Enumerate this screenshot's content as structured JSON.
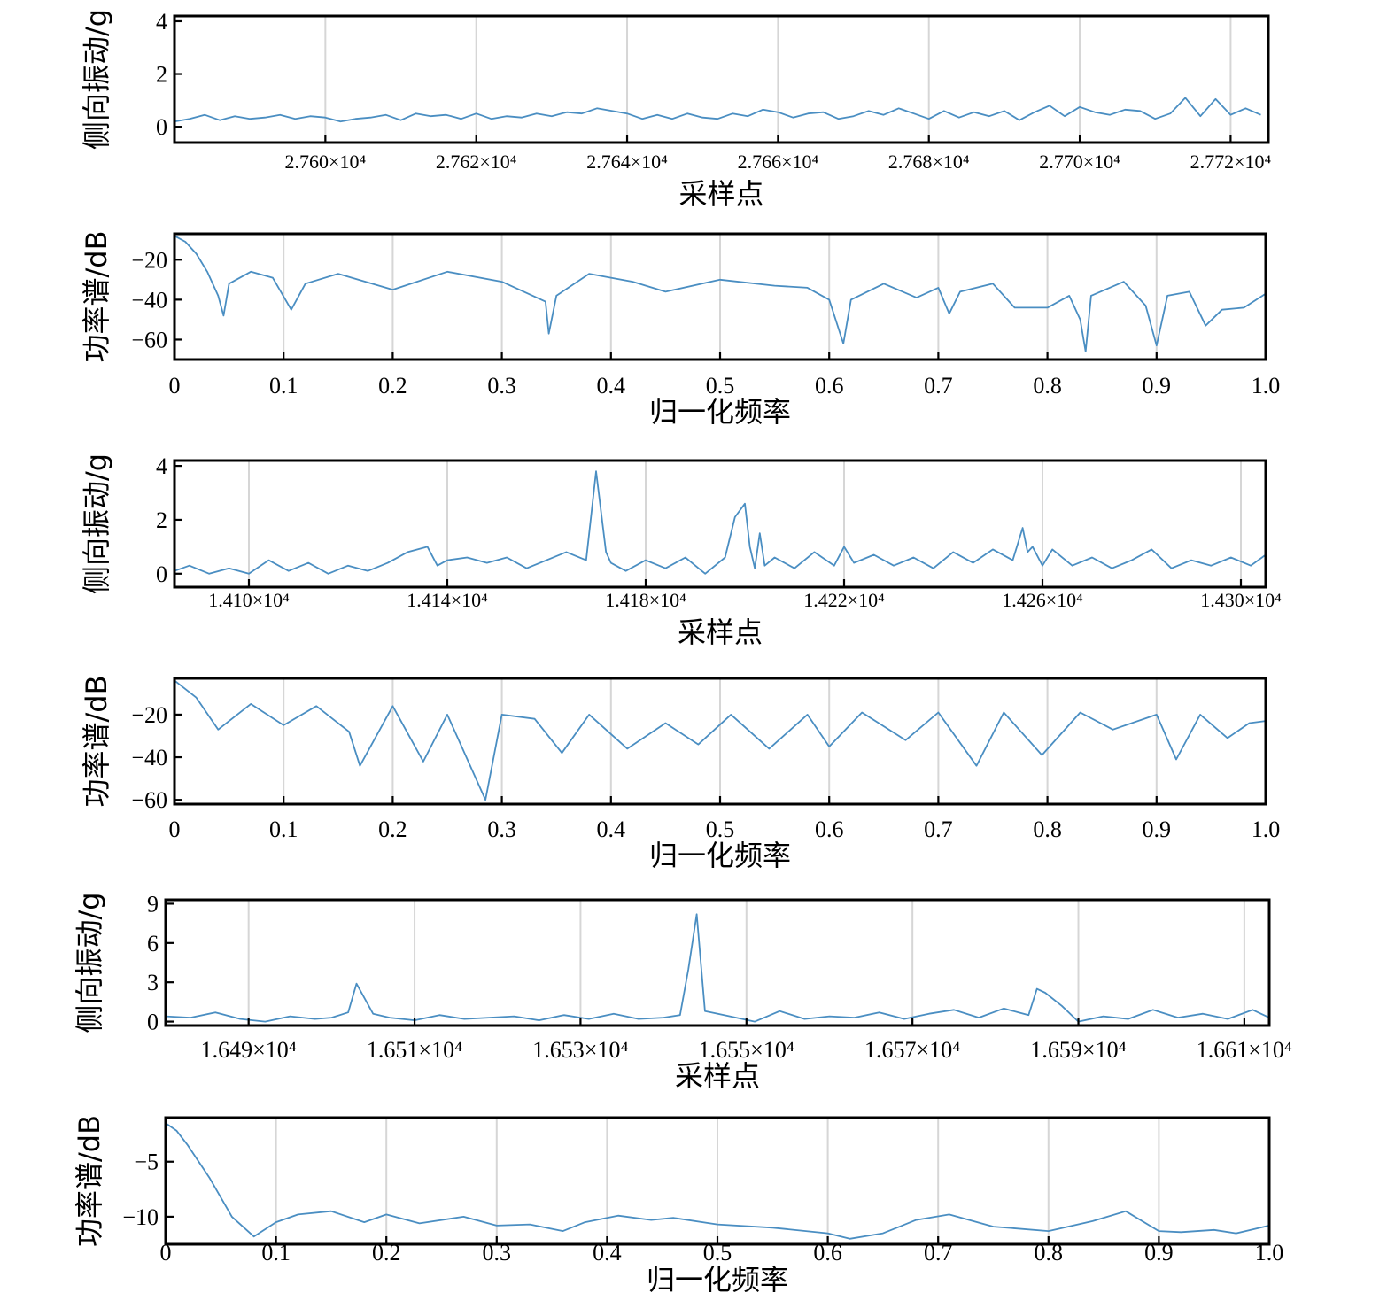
{
  "chart_data": [
    {
      "type": "line",
      "xlabel": "采样点",
      "ylabel": "侧向振动/g",
      "xlim": [
        27580,
        27725
      ],
      "ylim": [
        -0.6,
        4.2
      ],
      "yticks": [
        0,
        2,
        4
      ],
      "xticks": [
        27600,
        27620,
        27640,
        27660,
        27680,
        27700,
        27720
      ],
      "xtick_labels": [
        "2.760×10⁴",
        "2.762×10⁴",
        "2.764×10⁴",
        "2.766×10⁴",
        "2.768×10⁴",
        "2.770×10⁴",
        "2.772×10⁴"
      ],
      "grid": true,
      "series": [
        {
          "x": [
            27580,
            27582,
            27584,
            27586,
            27588,
            27590,
            27592,
            27594,
            27596,
            27598,
            27600,
            27602,
            27604,
            27606,
            27608,
            27610,
            27612,
            27614,
            27616,
            27618,
            27620,
            27622,
            27624,
            27626,
            27628,
            27630,
            27632,
            27634,
            27636,
            27638,
            27640,
            27642,
            27644,
            27646,
            27648,
            27650,
            27652,
            27654,
            27656,
            27658,
            27660,
            27662,
            27664,
            27666,
            27668,
            27670,
            27672,
            27674,
            27676,
            27678,
            27680,
            27682,
            27684,
            27686,
            27688,
            27690,
            27692,
            27694,
            27696,
            27698,
            27700,
            27702,
            27704,
            27706,
            27708,
            27710,
            27712,
            27714,
            27716,
            27718,
            27720,
            27722,
            27724
          ],
          "y": [
            0.2,
            0.3,
            0.45,
            0.25,
            0.4,
            0.3,
            0.35,
            0.45,
            0.3,
            0.4,
            0.35,
            0.2,
            0.3,
            0.35,
            0.45,
            0.25,
            0.5,
            0.4,
            0.45,
            0.3,
            0.5,
            0.3,
            0.4,
            0.35,
            0.5,
            0.4,
            0.55,
            0.5,
            0.7,
            0.6,
            0.5,
            0.3,
            0.45,
            0.3,
            0.5,
            0.35,
            0.3,
            0.5,
            0.4,
            0.65,
            0.55,
            0.35,
            0.5,
            0.55,
            0.3,
            0.4,
            0.6,
            0.45,
            0.7,
            0.5,
            0.3,
            0.6,
            0.35,
            0.55,
            0.4,
            0.6,
            0.25,
            0.55,
            0.8,
            0.4,
            0.75,
            0.55,
            0.45,
            0.65,
            0.6,
            0.3,
            0.5,
            1.1,
            0.4,
            1.05,
            0.45,
            0.7,
            0.45
          ]
        }
      ]
    },
    {
      "type": "line",
      "xlabel": "归一化频率",
      "ylabel": "功率谱/dB",
      "xlim": [
        0,
        1
      ],
      "ylim": [
        -70,
        -7
      ],
      "yticks": [
        -20,
        -40,
        -60
      ],
      "ytick_labels": [
        "−20",
        "−40",
        "−60"
      ],
      "xticks": [
        0,
        0.1,
        0.2,
        0.3,
        0.4,
        0.5,
        0.6,
        0.7,
        0.8,
        0.9,
        1.0
      ],
      "xtick_labels": [
        "0",
        "0.1",
        "0.2",
        "0.3",
        "0.4",
        "0.5",
        "0.6",
        "0.7",
        "0.8",
        "0.9",
        "1.0"
      ],
      "grid": true,
      "series": [
        {
          "x": [
            0,
            0.01,
            0.02,
            0.03,
            0.04,
            0.045,
            0.05,
            0.07,
            0.09,
            0.107,
            0.12,
            0.15,
            0.2,
            0.25,
            0.3,
            0.34,
            0.343,
            0.35,
            0.38,
            0.42,
            0.45,
            0.5,
            0.55,
            0.58,
            0.6,
            0.613,
            0.62,
            0.65,
            0.68,
            0.7,
            0.71,
            0.72,
            0.75,
            0.77,
            0.8,
            0.82,
            0.83,
            0.835,
            0.84,
            0.87,
            0.89,
            0.9,
            0.91,
            0.93,
            0.945,
            0.96,
            0.98,
            1.0
          ],
          "y": [
            -8,
            -11,
            -17,
            -26,
            -38,
            -48,
            -32,
            -26,
            -29,
            -45,
            -32,
            -27,
            -35,
            -26,
            -31,
            -41,
            -57,
            -38,
            -27,
            -31,
            -36,
            -30,
            -33,
            -34,
            -40,
            -62,
            -40,
            -32,
            -39,
            -34,
            -47,
            -36,
            -32,
            -44,
            -44,
            -38,
            -50,
            -66,
            -38,
            -31,
            -43,
            -63,
            -38,
            -36,
            -53,
            -45,
            -44,
            -37
          ]
        }
      ]
    },
    {
      "type": "line",
      "xlabel": "采样点",
      "ylabel": "侧向振动/g",
      "xlim": [
        14085,
        14305
      ],
      "ylim": [
        -0.5,
        4.2
      ],
      "yticks": [
        0,
        2,
        4
      ],
      "xticks": [
        14100,
        14140,
        14180,
        14220,
        14260,
        14300
      ],
      "xtick_labels": [
        "1.410×10⁴",
        "1.414×10⁴",
        "1.418×10⁴",
        "1.422×10⁴",
        "1.426×10⁴",
        "1.430×10⁴"
      ],
      "grid": true,
      "series": [
        {
          "x": [
            14085,
            14088,
            14092,
            14096,
            14100,
            14104,
            14108,
            14112,
            14116,
            14120,
            14124,
            14128,
            14132,
            14134,
            14136,
            14138,
            14140,
            14144,
            14148,
            14152,
            14156,
            14160,
            14164,
            14168,
            14170,
            14172,
            14173,
            14174,
            14176,
            14180,
            14184,
            14188,
            14192,
            14196,
            14198,
            14200,
            14201,
            14202,
            14203,
            14204,
            14206,
            14210,
            14214,
            14218,
            14220,
            14222,
            14226,
            14230,
            14234,
            14238,
            14242,
            14246,
            14250,
            14254,
            14256,
            14257,
            14258,
            14260,
            14262,
            14266,
            14270,
            14274,
            14278,
            14282,
            14286,
            14290,
            14294,
            14298,
            14302,
            14305
          ],
          "y": [
            0.1,
            0.3,
            0.0,
            0.2,
            0.0,
            0.5,
            0.1,
            0.4,
            0.0,
            0.3,
            0.1,
            0.4,
            0.8,
            0.9,
            1.0,
            0.3,
            0.5,
            0.6,
            0.4,
            0.6,
            0.2,
            0.5,
            0.8,
            0.5,
            3.8,
            0.8,
            0.4,
            0.3,
            0.1,
            0.5,
            0.2,
            0.6,
            0.0,
            0.6,
            2.1,
            2.6,
            1.0,
            0.2,
            1.5,
            0.3,
            0.6,
            0.2,
            0.8,
            0.3,
            1.0,
            0.4,
            0.7,
            0.3,
            0.6,
            0.2,
            0.8,
            0.4,
            0.9,
            0.5,
            1.7,
            0.8,
            1.0,
            0.3,
            0.9,
            0.3,
            0.6,
            0.2,
            0.5,
            0.9,
            0.2,
            0.5,
            0.3,
            0.6,
            0.3,
            0.7
          ]
        }
      ]
    },
    {
      "type": "line",
      "xlabel": "归一化频率",
      "ylabel": "功率谱/dB",
      "xlim": [
        0,
        1
      ],
      "ylim": [
        -62,
        -3
      ],
      "yticks": [
        -20,
        -40,
        -60
      ],
      "ytick_labels": [
        "−20",
        "−40",
        "−60"
      ],
      "xticks": [
        0,
        0.1,
        0.2,
        0.3,
        0.4,
        0.5,
        0.6,
        0.7,
        0.8,
        0.9,
        1.0
      ],
      "xtick_labels": [
        "0",
        "0.1",
        "0.2",
        "0.3",
        "0.4",
        "0.5",
        "0.6",
        "0.7",
        "0.8",
        "0.9",
        "1.0"
      ],
      "grid": true,
      "series": [
        {
          "x": [
            0,
            0.02,
            0.04,
            0.07,
            0.1,
            0.13,
            0.16,
            0.17,
            0.2,
            0.228,
            0.25,
            0.285,
            0.3,
            0.33,
            0.355,
            0.38,
            0.415,
            0.45,
            0.48,
            0.51,
            0.545,
            0.58,
            0.6,
            0.63,
            0.67,
            0.7,
            0.735,
            0.76,
            0.795,
            0.83,
            0.86,
            0.9,
            0.918,
            0.94,
            0.965,
            0.985,
            1.0
          ],
          "y": [
            -4,
            -12,
            -27,
            -15,
            -25,
            -16,
            -28,
            -44,
            -16,
            -42,
            -20,
            -60,
            -20,
            -22,
            -38,
            -20,
            -36,
            -24,
            -34,
            -20,
            -36,
            -20,
            -35,
            -19,
            -32,
            -19,
            -44,
            -19,
            -39,
            -19,
            -27,
            -20,
            -41,
            -20,
            -31,
            -24,
            -23
          ]
        }
      ]
    },
    {
      "type": "line",
      "xlabel": "采样点",
      "ylabel": "侧向振动/g",
      "xlim": [
        16480,
        16613
      ],
      "ylim": [
        -0.3,
        9.3
      ],
      "yticks": [
        0,
        3,
        6,
        9
      ],
      "xticks": [
        16490,
        16510,
        16530,
        16550,
        16570,
        16590,
        16610
      ],
      "xtick_labels": [
        "1.649×10⁴",
        "1.651×10⁴",
        "1.653×10⁴",
        "1.655×10⁴",
        "1.657×10⁴",
        "1.659×10⁴",
        "1.661×10⁴"
      ],
      "grid": true,
      "series": [
        {
          "x": [
            16480,
            16483,
            16486,
            16489,
            16492,
            16495,
            16498,
            16500,
            16502,
            16503,
            16505,
            16507,
            16510,
            16513,
            16516,
            16519,
            16522,
            16525,
            16528,
            16531,
            16534,
            16537,
            16540,
            16542,
            16543,
            16544,
            16545,
            16548,
            16551,
            16554,
            16557,
            16560,
            16563,
            16566,
            16569,
            16572,
            16575,
            16578,
            16581,
            16584,
            16585,
            16586,
            16588,
            16590,
            16593,
            16596,
            16599,
            16602,
            16605,
            16608,
            16611,
            16613
          ],
          "y": [
            0.4,
            0.3,
            0.7,
            0.2,
            0.0,
            0.4,
            0.2,
            0.3,
            0.7,
            2.9,
            0.6,
            0.3,
            0.1,
            0.5,
            0.2,
            0.3,
            0.4,
            0.1,
            0.5,
            0.2,
            0.6,
            0.2,
            0.3,
            0.5,
            4.0,
            8.2,
            0.8,
            0.4,
            0.0,
            0.8,
            0.2,
            0.4,
            0.3,
            0.7,
            0.2,
            0.6,
            0.9,
            0.3,
            1.0,
            0.5,
            2.5,
            2.2,
            1.2,
            0.0,
            0.4,
            0.2,
            0.9,
            0.3,
            0.6,
            0.2,
            0.9,
            0.3
          ]
        }
      ]
    },
    {
      "type": "line",
      "xlabel": "归一化频率",
      "ylabel": "功率谱/dB",
      "xlim": [
        0,
        1
      ],
      "ylim": [
        -12.5,
        -1
      ],
      "yticks": [
        -5,
        -10
      ],
      "ytick_labels": [
        "−5",
        "−10"
      ],
      "xticks": [
        0,
        0.1,
        0.2,
        0.3,
        0.4,
        0.5,
        0.6,
        0.7,
        0.8,
        0.9,
        1.0
      ],
      "xtick_labels": [
        "0",
        "0.1",
        "0.2",
        "0.3",
        "0.4",
        "0.5",
        "0.6",
        "0.7",
        "0.8",
        "0.9",
        "1.0"
      ],
      "grid": true,
      "series": [
        {
          "x": [
            0,
            0.01,
            0.02,
            0.04,
            0.06,
            0.08,
            0.1,
            0.12,
            0.15,
            0.18,
            0.2,
            0.23,
            0.27,
            0.3,
            0.33,
            0.36,
            0.38,
            0.41,
            0.44,
            0.46,
            0.5,
            0.55,
            0.6,
            0.62,
            0.65,
            0.68,
            0.71,
            0.75,
            0.8,
            0.84,
            0.87,
            0.9,
            0.92,
            0.95,
            0.97,
            1.0
          ],
          "y": [
            -1.5,
            -2.2,
            -3.5,
            -6.5,
            -10,
            -11.8,
            -10.5,
            -9.8,
            -9.5,
            -10.5,
            -9.8,
            -10.6,
            -10,
            -10.8,
            -10.7,
            -11.3,
            -10.5,
            -9.9,
            -10.3,
            -10.1,
            -10.7,
            -11.0,
            -11.5,
            -12.0,
            -11.5,
            -10.3,
            -9.8,
            -10.9,
            -11.3,
            -10.4,
            -9.5,
            -11.3,
            -11.4,
            -11.2,
            -11.5,
            -10.8
          ]
        }
      ]
    }
  ]
}
